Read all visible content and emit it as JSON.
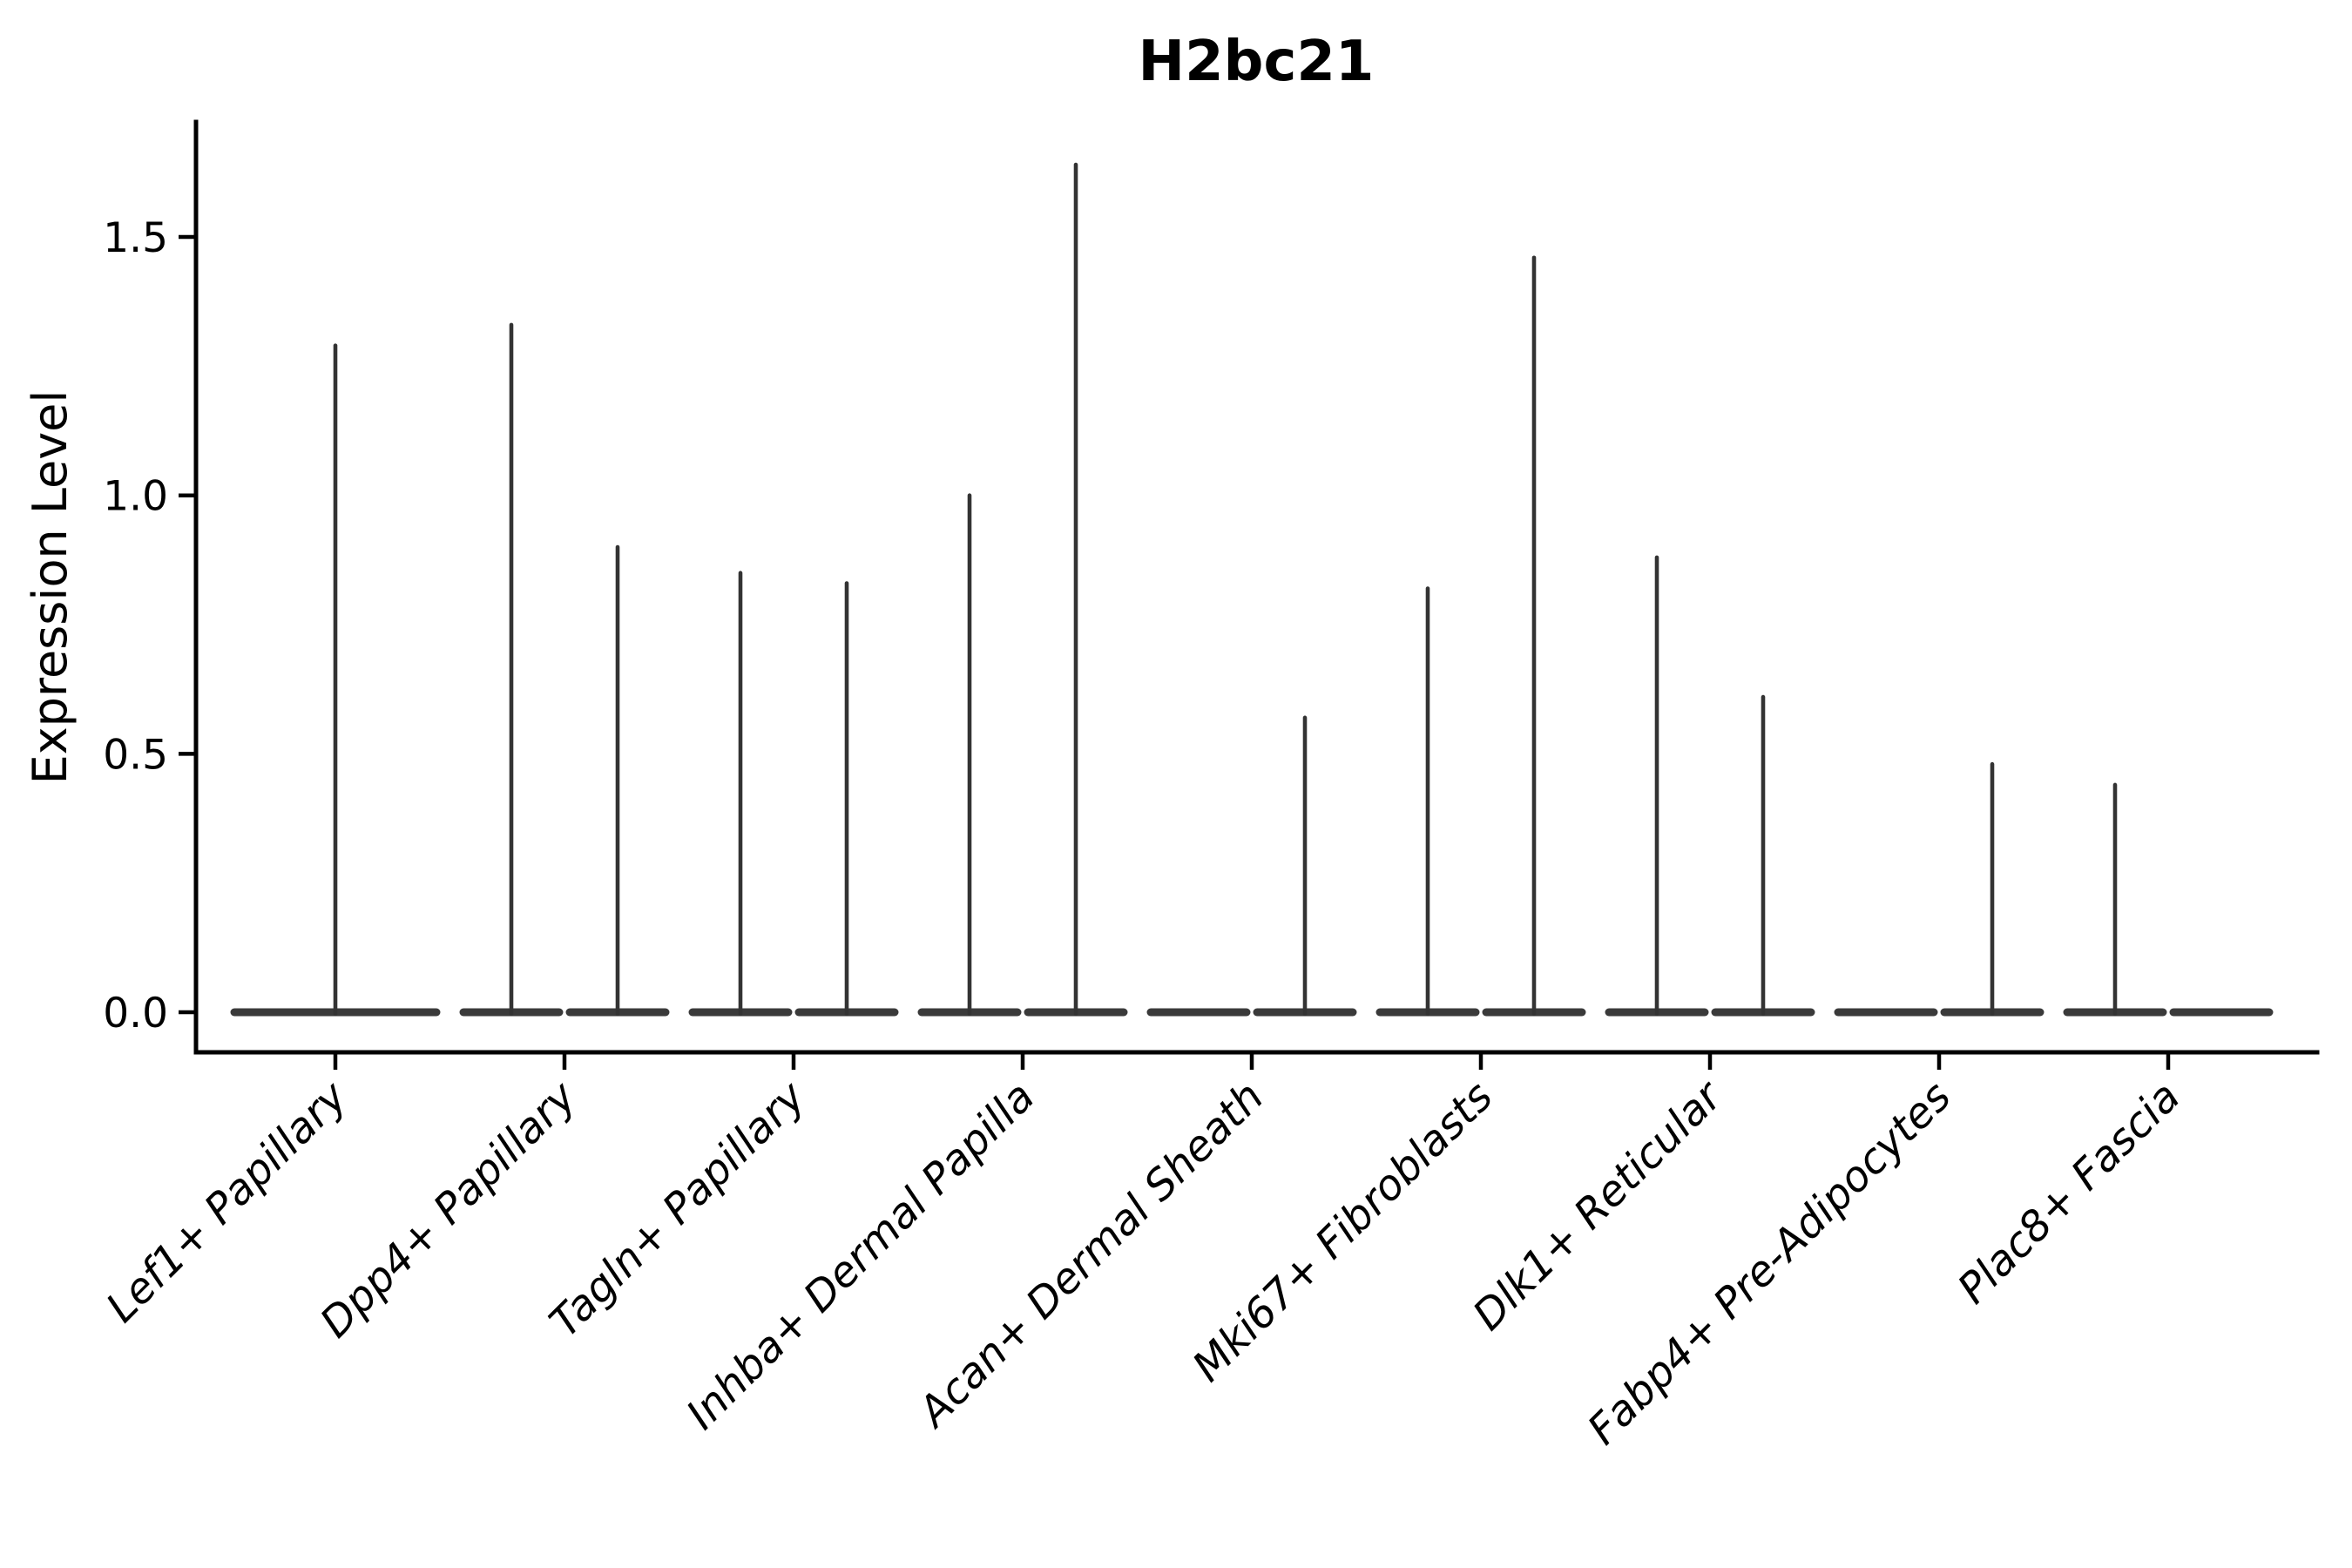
{
  "title": "H2bc21",
  "y_axis": {
    "label": "Expression Level",
    "tick_labels": [
      "0.0",
      "0.5",
      "1.0",
      "1.5"
    ]
  },
  "x_axis": {
    "categories": [
      "Lef1+ Papillary",
      "Dpp4+ Papillary",
      "Tagln+ Papillary",
      "Inhba+ Dermal Papilla",
      "Acan+ Dermal Sheath",
      "Mki67+ Fibroblasts",
      "Dlk1+ Reticular",
      "Fabp4+ Pre-Adipocytes",
      "Plac8+ Fascia"
    ]
  },
  "chart_data": {
    "type": "violin",
    "title": "H2bc21",
    "xlabel": "",
    "ylabel": "Expression Level",
    "ylim": [
      -0.08,
      1.72
    ],
    "yticks": [
      0.0,
      0.5,
      1.0,
      1.5
    ],
    "ytick_labels": [
      "0.0",
      "0.5",
      "1.0",
      "1.5"
    ],
    "grid": false,
    "legend": "none",
    "violin_color": "#333333",
    "axis_color": "#000000",
    "categories": [
      "Lef1+ Papillary",
      "Dpp4+ Papillary",
      "Tagln+ Papillary",
      "Inhba+ Dermal Papilla",
      "Acan+ Dermal Sheath",
      "Mki67+ Fibroblasts",
      "Dlk1+ Reticular",
      "Fabp4+ Pre-Adipocytes",
      "Plac8+ Fascia"
    ],
    "series": [
      {
        "category": "Lef1+ Papillary",
        "violins": [
          {
            "position": "center",
            "max_expression": 1.29
          }
        ]
      },
      {
        "category": "Dpp4+ Papillary",
        "violins": [
          {
            "position": "left",
            "max_expression": 1.33
          },
          {
            "position": "right",
            "max_expression": 0.9
          }
        ]
      },
      {
        "category": "Tagln+ Papillary",
        "violins": [
          {
            "position": "left",
            "max_expression": 0.85
          },
          {
            "position": "right",
            "max_expression": 0.83
          }
        ]
      },
      {
        "category": "Inhba+ Dermal Papilla",
        "violins": [
          {
            "position": "left",
            "max_expression": 1.0
          },
          {
            "position": "right",
            "max_expression": 1.64
          }
        ]
      },
      {
        "category": "Acan+ Dermal Sheath",
        "violins": [
          {
            "position": "left",
            "max_expression": 0.0
          },
          {
            "position": "right",
            "max_expression": 0.57
          }
        ]
      },
      {
        "category": "Mki67+ Fibroblasts",
        "violins": [
          {
            "position": "left",
            "max_expression": 0.82
          },
          {
            "position": "right",
            "max_expression": 1.46
          }
        ]
      },
      {
        "category": "Dlk1+ Reticular",
        "violins": [
          {
            "position": "left",
            "max_expression": 0.88
          },
          {
            "position": "right",
            "max_expression": 0.61
          }
        ]
      },
      {
        "category": "Fabp4+ Pre-Adipocytes",
        "violins": [
          {
            "position": "left",
            "max_expression": 0.0
          },
          {
            "position": "right",
            "max_expression": 0.48
          }
        ]
      },
      {
        "category": "Plac8+ Fascia",
        "violins": [
          {
            "position": "left",
            "max_expression": 0.44
          },
          {
            "position": "right",
            "max_expression": 0.0
          }
        ]
      }
    ]
  }
}
